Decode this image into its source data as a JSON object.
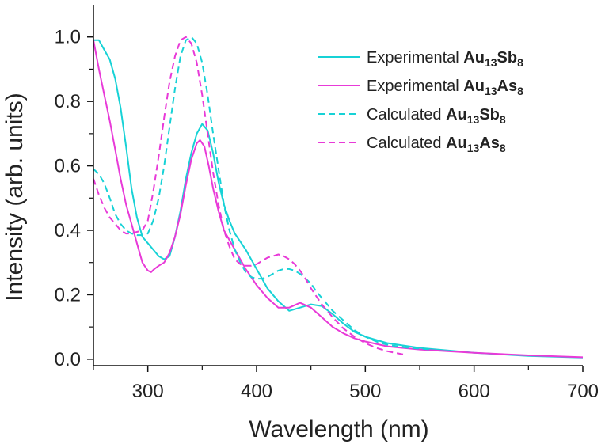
{
  "chart_data": {
    "type": "line",
    "title": "",
    "xlabel": "Wavelength (nm)",
    "ylabel": "Intensity (arb. units)",
    "xlim": [
      250,
      700
    ],
    "ylim": [
      -0.02,
      1.1
    ],
    "xticks": [
      300,
      400,
      500,
      600,
      700
    ],
    "xtick_labels": [
      "300",
      "400",
      "500",
      "600",
      "700"
    ],
    "yticks": [
      0.0,
      0.2,
      0.4,
      0.6,
      0.8,
      1.0
    ],
    "ytick_labels": [
      "0.0",
      "0.2",
      "0.4",
      "0.6",
      "0.8",
      "1.0"
    ],
    "grid": false,
    "legend_position": "top-right",
    "series": [
      {
        "name": "Experimental Au13Sb8",
        "label_prefix": "Experimental ",
        "formula": [
          {
            "t": "Au",
            "sub": "13"
          },
          {
            "t": "Sb",
            "sub": "8"
          }
        ],
        "color": "#17d2d6",
        "dash": "solid",
        "x": [
          250,
          255,
          260,
          265,
          270,
          275,
          280,
          285,
          290,
          295,
          300,
          305,
          310,
          315,
          320,
          325,
          330,
          335,
          340,
          345,
          350,
          355,
          360,
          365,
          370,
          375,
          380,
          390,
          400,
          410,
          420,
          430,
          440,
          450,
          460,
          470,
          480,
          490,
          500,
          520,
          550,
          600,
          650,
          700
        ],
        "y": [
          0.99,
          0.99,
          0.96,
          0.93,
          0.87,
          0.78,
          0.66,
          0.53,
          0.44,
          0.38,
          0.36,
          0.34,
          0.32,
          0.31,
          0.32,
          0.38,
          0.46,
          0.56,
          0.64,
          0.7,
          0.73,
          0.71,
          0.64,
          0.55,
          0.48,
          0.43,
          0.39,
          0.34,
          0.28,
          0.22,
          0.18,
          0.15,
          0.16,
          0.17,
          0.165,
          0.14,
          0.11,
          0.085,
          0.07,
          0.05,
          0.035,
          0.02,
          0.01,
          0.005
        ]
      },
      {
        "name": "Experimental Au13As8",
        "label_prefix": "Experimental ",
        "formula": [
          {
            "t": "Au",
            "sub": "13"
          },
          {
            "t": "As",
            "sub": "8"
          }
        ],
        "color": "#e83ad8",
        "dash": "solid",
        "x": [
          250,
          255,
          260,
          265,
          270,
          275,
          280,
          285,
          290,
          295,
          300,
          303,
          306,
          310,
          315,
          320,
          325,
          330,
          335,
          340,
          345,
          348,
          352,
          356,
          360,
          365,
          370,
          380,
          390,
          400,
          410,
          420,
          430,
          440,
          450,
          460,
          470,
          480,
          490,
          500,
          520,
          550,
          600,
          650,
          700
        ],
        "y": [
          0.99,
          0.9,
          0.82,
          0.74,
          0.65,
          0.56,
          0.48,
          0.42,
          0.36,
          0.3,
          0.275,
          0.27,
          0.28,
          0.29,
          0.3,
          0.33,
          0.38,
          0.45,
          0.54,
          0.62,
          0.67,
          0.68,
          0.66,
          0.6,
          0.53,
          0.46,
          0.4,
          0.34,
          0.28,
          0.23,
          0.19,
          0.16,
          0.16,
          0.175,
          0.16,
          0.13,
          0.1,
          0.08,
          0.065,
          0.055,
          0.04,
          0.03,
          0.02,
          0.012,
          0.006
        ]
      },
      {
        "name": "Calculated Au13Sb8",
        "label_prefix": "Calculated ",
        "formula": [
          {
            "t": "Au",
            "sub": "13"
          },
          {
            "t": "Sb",
            "sub": "8"
          }
        ],
        "color": "#17d2d6",
        "dash": "dashed",
        "x": [
          250,
          255,
          260,
          265,
          270,
          275,
          280,
          285,
          290,
          295,
          300,
          305,
          310,
          315,
          320,
          325,
          330,
          335,
          340,
          345,
          350,
          355,
          360,
          365,
          370,
          375,
          380,
          385,
          390,
          395,
          400,
          405,
          410,
          415,
          420,
          425,
          430,
          435,
          440,
          445,
          450,
          455,
          460,
          465,
          470,
          480,
          490,
          500,
          510,
          520,
          530,
          540,
          550,
          560
        ],
        "y": [
          0.59,
          0.575,
          0.545,
          0.5,
          0.45,
          0.42,
          0.4,
          0.39,
          0.385,
          0.385,
          0.39,
          0.43,
          0.5,
          0.6,
          0.72,
          0.84,
          0.94,
          0.99,
          1.0,
          0.98,
          0.92,
          0.82,
          0.7,
          0.59,
          0.48,
          0.4,
          0.34,
          0.3,
          0.27,
          0.255,
          0.25,
          0.25,
          0.255,
          0.265,
          0.275,
          0.28,
          0.28,
          0.275,
          0.265,
          0.25,
          0.235,
          0.21,
          0.19,
          0.17,
          0.15,
          0.12,
          0.09,
          0.07,
          0.055,
          0.045,
          0.04,
          0.035,
          0.033,
          0.03
        ]
      },
      {
        "name": "Calculated Au13As8",
        "label_prefix": "Calculated ",
        "formula": [
          {
            "t": "Au",
            "sub": "13"
          },
          {
            "t": "As",
            "sub": "8"
          }
        ],
        "color": "#e83ad8",
        "dash": "dashed",
        "x": [
          250,
          255,
          260,
          265,
          270,
          275,
          280,
          285,
          290,
          295,
          300,
          305,
          310,
          315,
          320,
          325,
          330,
          335,
          340,
          345,
          350,
          355,
          360,
          365,
          370,
          375,
          380,
          385,
          390,
          395,
          400,
          405,
          410,
          415,
          420,
          425,
          430,
          435,
          440,
          445,
          450,
          455,
          460,
          470,
          480,
          490,
          500,
          510,
          520,
          530,
          535
        ],
        "y": [
          0.56,
          0.51,
          0.47,
          0.44,
          0.42,
          0.4,
          0.39,
          0.39,
          0.395,
          0.4,
          0.43,
          0.52,
          0.63,
          0.75,
          0.86,
          0.94,
          0.99,
          1.0,
          0.98,
          0.92,
          0.82,
          0.7,
          0.58,
          0.48,
          0.4,
          0.35,
          0.31,
          0.295,
          0.29,
          0.29,
          0.295,
          0.305,
          0.315,
          0.32,
          0.325,
          0.32,
          0.31,
          0.295,
          0.275,
          0.25,
          0.22,
          0.195,
          0.17,
          0.13,
          0.095,
          0.07,
          0.05,
          0.035,
          0.025,
          0.018,
          0.015
        ]
      }
    ]
  }
}
